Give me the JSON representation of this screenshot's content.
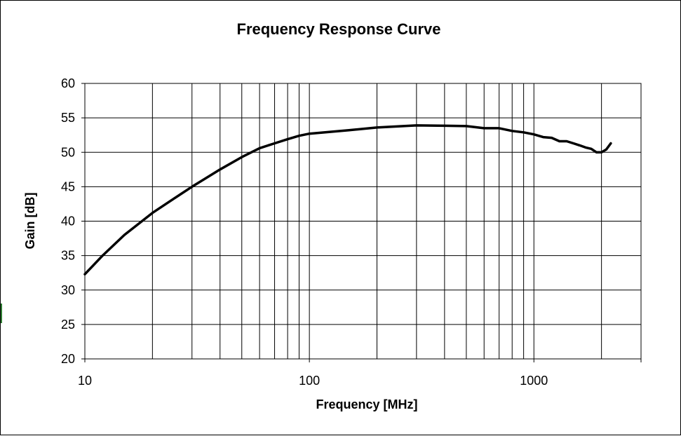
{
  "chart_data": {
    "type": "line",
    "title": "Frequency Response Curve",
    "xlabel": "Frequency [MHz]",
    "ylabel": "Gain [dB]",
    "xscale": "log",
    "xlim": [
      10,
      3000
    ],
    "ylim": [
      20,
      60
    ],
    "grid": true,
    "x_ticks": [
      10,
      100,
      1000
    ],
    "x_tick_labels": [
      "10",
      "100",
      "1000"
    ],
    "y_ticks": [
      20,
      25,
      30,
      35,
      40,
      45,
      50,
      55,
      60
    ],
    "y_tick_labels": [
      "20",
      "25",
      "30",
      "35",
      "40",
      "45",
      "50",
      "55",
      "60"
    ],
    "series": [
      {
        "color": "#000000",
        "x": [
          10,
          12,
          15,
          20,
          25,
          30,
          40,
          50,
          60,
          70,
          80,
          90,
          100,
          150,
          200,
          300,
          400,
          500,
          600,
          700,
          800,
          900,
          1000,
          1100,
          1200,
          1300,
          1400,
          1500,
          1600,
          1700,
          1800,
          1900,
          2000,
          2100,
          2200
        ],
        "y": [
          32.3,
          35.0,
          38.0,
          41.2,
          43.3,
          45.0,
          47.5,
          49.3,
          50.6,
          51.3,
          51.9,
          52.4,
          52.7,
          53.2,
          53.6,
          53.9,
          53.85,
          53.8,
          53.5,
          53.5,
          53.1,
          52.9,
          52.6,
          52.2,
          52.1,
          51.6,
          51.6,
          51.3,
          51.0,
          50.7,
          50.5,
          50.0,
          50.0,
          50.4,
          51.3
        ]
      }
    ]
  }
}
